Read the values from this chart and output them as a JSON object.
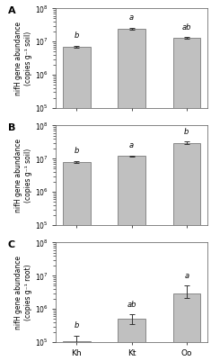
{
  "panels": [
    "A",
    "B",
    "C"
  ],
  "categories": [
    "Kh",
    "Kt",
    "Oo"
  ],
  "bar_color": "#c0c0c0",
  "bar_edgecolor": "#666666",
  "bar_linewidth": 0.5,
  "panel_A": {
    "values": [
      7000000.0,
      25000000.0,
      13000000.0
    ],
    "errors_lo": [
      500000.0,
      1500000.0,
      800000.0
    ],
    "errors_hi": [
      500000.0,
      1500000.0,
      800000.0
    ],
    "letters": [
      "b",
      "a",
      "ab"
    ],
    "ylim": [
      100000.0,
      100000000.0
    ],
    "yticks": [
      100000.0,
      1000000.0,
      10000000.0,
      100000000.0
    ],
    "ylabel1": "nifH gene abundance",
    "ylabel2": "(copies g⁻¹ soil)"
  },
  "panel_B": {
    "values": [
      8000000.0,
      12000000.0,
      30000000.0
    ],
    "errors_lo": [
      500000.0,
      400000.0,
      3000000.0
    ],
    "errors_hi": [
      500000.0,
      400000.0,
      3000000.0
    ],
    "letters": [
      "b",
      "a",
      "b"
    ],
    "ylim": [
      100000.0,
      100000000.0
    ],
    "yticks": [
      100000.0,
      1000000.0,
      10000000.0,
      100000000.0
    ],
    "ylabel1": "nifH gene abundance",
    "ylabel2": "(copies g⁻¹ soil)"
  },
  "panel_C": {
    "values": [
      110000.0,
      500000.0,
      3000000.0
    ],
    "errors_lo": [
      50000.0,
      150000.0,
      800000.0
    ],
    "errors_hi": [
      50000.0,
      200000.0,
      2000000.0
    ],
    "letters": [
      "b",
      "ab",
      "a"
    ],
    "ylim": [
      100000.0,
      100000000.0
    ],
    "yticks": [
      100000.0,
      1000000.0,
      10000000.0,
      100000000.0
    ],
    "ylabel1": "nifH gene abundance",
    "ylabel2": "(copies g⁻¹ root)"
  },
  "xlabel_fontsize": 6.5,
  "ylabel_fontsize": 5.5,
  "tick_fontsize": 5.5,
  "letter_fontsize": 6,
  "panel_label_fontsize": 8,
  "fig_width": 2.35,
  "fig_height": 4.01,
  "dpi": 100
}
